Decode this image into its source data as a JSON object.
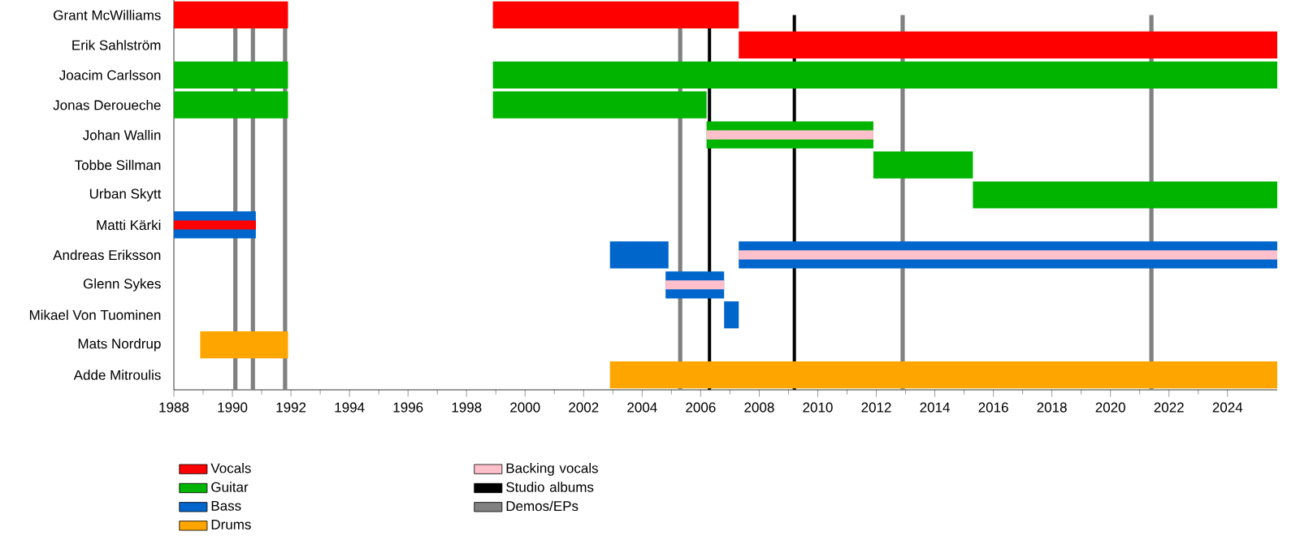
{
  "chart_data": {
    "type": "bar",
    "orientation": "horizontal",
    "categories": [
      "Grant McWilliams",
      "Erik Sahlström",
      "Joacim Carlsson",
      "Jonas Deroueche",
      "Johan Wallin",
      "Tobbe Sillman",
      "Urban Skytt",
      "Matti Kärki",
      "Andreas Eriksson",
      "Glenn Sykes",
      "Mikael Von Tuominen",
      "Mats Nordrup",
      "Adde Mitroulis"
    ],
    "series": [
      {
        "name": "Vocals",
        "color": "#ff0000",
        "base": [
          1988,
          2007.3,
          null,
          null,
          null,
          null,
          null,
          null,
          null,
          null,
          null,
          null,
          null
        ],
        "values": [
          3.9,
          18.4,
          null,
          null,
          null,
          null,
          null,
          null,
          null,
          null,
          null,
          null,
          null
        ]
      },
      {
        "color": "#ff0000",
        "base": [
          1998.9,
          null,
          null,
          null,
          null,
          null,
          null,
          null,
          null,
          null,
          null,
          null,
          null
        ],
        "values": [
          8.4,
          null,
          null,
          null,
          null,
          null,
          null,
          null,
          null,
          null,
          null,
          null,
          null
        ]
      },
      {
        "name": "Guitar",
        "color": "#00b400",
        "base": [
          null,
          null,
          1988,
          1988,
          2006.2,
          2011.9,
          2015.3,
          null,
          null,
          null,
          null,
          null,
          null
        ],
        "values": [
          null,
          null,
          3.9,
          3.9,
          5.7,
          3.4,
          10.4,
          null,
          null,
          null,
          null,
          null,
          null
        ]
      },
      {
        "color": "#00b400",
        "base": [
          null,
          null,
          1998.9,
          1998.9,
          null,
          null,
          null,
          null,
          null,
          null,
          null,
          null,
          null
        ],
        "values": [
          null,
          null,
          26.8,
          7.3,
          null,
          null,
          null,
          null,
          null,
          null,
          null,
          null,
          null
        ]
      },
      {
        "name": "Bass",
        "color": "#0066cc",
        "base": [
          null,
          null,
          null,
          null,
          null,
          null,
          null,
          1988,
          2002.9,
          2004.8,
          2006.8,
          null,
          null
        ],
        "values": [
          null,
          null,
          null,
          null,
          null,
          null,
          null,
          2.8,
          2.0,
          2.0,
          0.5,
          null,
          null
        ]
      },
      {
        "color": "#0066cc",
        "base": [
          null,
          null,
          null,
          null,
          null,
          null,
          null,
          null,
          2007.3,
          null,
          null,
          null,
          null
        ],
        "values": [
          null,
          null,
          null,
          null,
          null,
          null,
          null,
          null,
          18.4,
          null,
          null,
          null,
          null
        ]
      },
      {
        "name": "Drums",
        "color": "#ffa500",
        "base": [
          null,
          null,
          null,
          null,
          null,
          null,
          null,
          null,
          null,
          null,
          null,
          1988.9,
          2002.9
        ],
        "values": [
          null,
          null,
          null,
          null,
          null,
          null,
          null,
          null,
          null,
          null,
          null,
          3.0,
          22.8
        ]
      },
      {
        "name": "Backing vocals",
        "color": "#ffc0cb",
        "base": [
          null,
          null,
          null,
          null,
          2006.2,
          null,
          null,
          null,
          2007.3,
          2004.8,
          null,
          null,
          null
        ],
        "values": [
          null,
          null,
          null,
          null,
          5.7,
          null,
          null,
          null,
          18.4,
          2.0,
          null,
          null,
          null
        ]
      },
      {
        "color": "#ff0000",
        "base": [
          null,
          null,
          null,
          null,
          null,
          null,
          null,
          1988,
          null,
          null,
          null,
          null,
          null
        ],
        "values": [
          null,
          null,
          null,
          null,
          null,
          null,
          null,
          2.8,
          null,
          null,
          null,
          null,
          null
        ]
      }
    ],
    "ref_lines": [
      {
        "axis": "x",
        "value": 2006.3,
        "label": "Studio albums",
        "color": "#000000"
      },
      {
        "axis": "x",
        "value": 2009.2,
        "color": "#000000"
      },
      {
        "axis": "x",
        "value": 1990.1,
        "label": "Demos/EPs",
        "color": "#808080"
      },
      {
        "axis": "x",
        "value": 1990.7,
        "color": "#808080"
      },
      {
        "axis": "x",
        "value": 1991.8,
        "color": "#808080"
      },
      {
        "axis": "x",
        "value": 2005.3,
        "color": "#808080"
      },
      {
        "axis": "x",
        "value": 2012.9,
        "color": "#808080"
      },
      {
        "axis": "x",
        "value": 2021.4,
        "color": "#808080"
      }
    ],
    "xlim": [
      1988,
      2025.7
    ],
    "xticks": [
      1988,
      1990,
      1992,
      1994,
      1996,
      1998,
      2000,
      2002,
      2004,
      2006,
      2008,
      2010,
      2012,
      2014,
      2016,
      2018,
      2020,
      2022,
      2024
    ],
    "legend": "bottom",
    "grid": false
  }
}
